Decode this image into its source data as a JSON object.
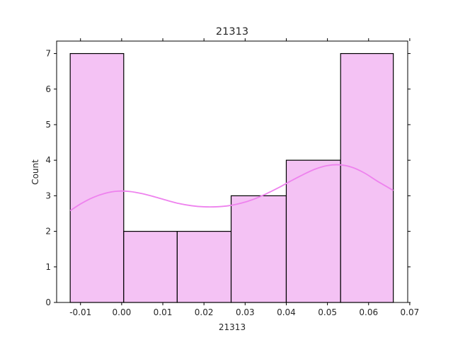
{
  "chart_data": {
    "type": "histogram",
    "title": "21313",
    "xlabel": "21313",
    "ylabel": "Count",
    "xlim": [
      -0.0158,
      0.0695
    ],
    "ylim": [
      0,
      7.35
    ],
    "x_ticks": [
      -0.01,
      0.0,
      0.01,
      0.02,
      0.03,
      0.04,
      0.05,
      0.06,
      0.07
    ],
    "x_tick_labels": [
      "-0.01",
      "0.00",
      "0.01",
      "0.02",
      "0.03",
      "0.04",
      "0.05",
      "0.06",
      "0.07"
    ],
    "y_ticks": [
      0,
      1,
      2,
      3,
      4,
      5,
      6,
      7
    ],
    "y_tick_labels": [
      "0",
      "1",
      "2",
      "3",
      "4",
      "5",
      "6",
      "7"
    ],
    "bins": [
      {
        "x0": -0.0125,
        "x1": 0.0005,
        "count": 7
      },
      {
        "x0": 0.0005,
        "x1": 0.0135,
        "count": 2
      },
      {
        "x0": 0.0135,
        "x1": 0.0266,
        "count": 2
      },
      {
        "x0": 0.0266,
        "x1": 0.04,
        "count": 3
      },
      {
        "x0": 0.04,
        "x1": 0.0532,
        "count": 4
      },
      {
        "x0": 0.0532,
        "x1": 0.066,
        "count": 7
      }
    ],
    "kde": {
      "x": [
        -0.0125,
        -0.01,
        -0.007,
        -0.004,
        -0.001,
        0.002,
        0.005,
        0.008,
        0.011,
        0.014,
        0.017,
        0.02,
        0.023,
        0.026,
        0.029,
        0.032,
        0.035,
        0.038,
        0.041,
        0.044,
        0.047,
        0.05,
        0.053,
        0.056,
        0.059,
        0.062,
        0.066
      ],
      "y": [
        2.58,
        2.77,
        2.95,
        3.07,
        3.13,
        3.12,
        3.06,
        2.97,
        2.87,
        2.78,
        2.72,
        2.69,
        2.69,
        2.72,
        2.79,
        2.9,
        3.05,
        3.22,
        3.41,
        3.59,
        3.75,
        3.85,
        3.87,
        3.8,
        3.64,
        3.42,
        3.15
      ]
    },
    "grid": false,
    "legend": "none",
    "colors": {
      "bar_fill": "#f4c2f4",
      "bar_edge": "#000000",
      "kde_line": "#ee82ee",
      "axes": "#000000"
    }
  }
}
